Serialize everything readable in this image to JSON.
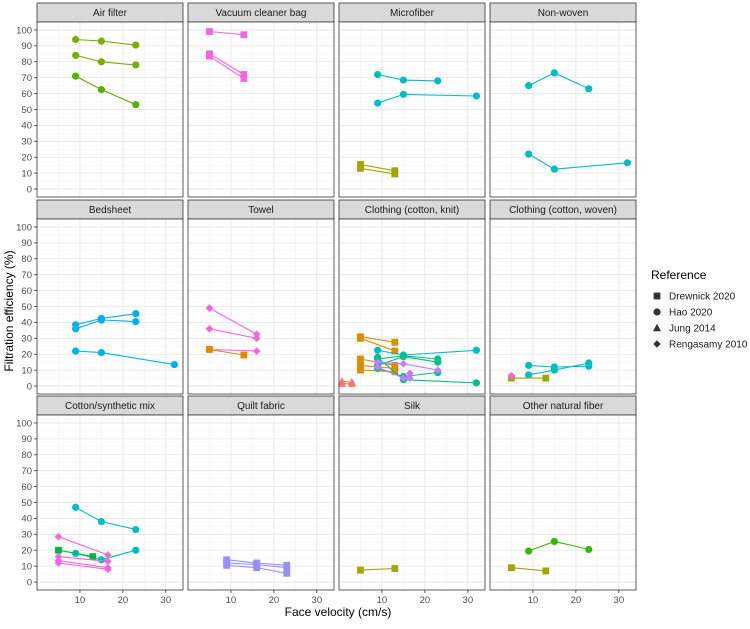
{
  "chart_data": {
    "type": "line",
    "ylabel": "Filtration efficiency (%)",
    "xlabel": "Face velocity (cm/s)",
    "x_ticks": [
      "10",
      "20",
      "30"
    ],
    "y_ticks": [
      "0",
      "10",
      "20",
      "30",
      "40",
      "50",
      "60",
      "70",
      "80",
      "90",
      "100"
    ],
    "xlim": [
      0,
      34
    ],
    "ylim": [
      -5,
      105
    ],
    "legend": {
      "title": "Reference",
      "position": "right",
      "items": [
        {
          "label": "Drewnick 2020",
          "shape": "square"
        },
        {
          "label": "Hao 2020",
          "shape": "circle"
        },
        {
          "label": "Jung 2014",
          "shape": "triangle"
        },
        {
          "label": "Rengasamy 2010",
          "shape": "diamond"
        }
      ]
    },
    "panels": [
      {
        "title": "Air filter",
        "series": [
          {
            "ref": "Hao 2020",
            "color": "#7CAE00",
            "points": [
              [
                9,
                94
              ],
              [
                15,
                93
              ],
              [
                23,
                90.5
              ]
            ]
          },
          {
            "ref": "Hao 2020",
            "color": "#7CAE00",
            "points": [
              [
                9,
                84
              ],
              [
                15,
                80
              ],
              [
                23,
                78
              ]
            ]
          },
          {
            "ref": "Hao 2020",
            "color": "#53B400",
            "points": [
              [
                9,
                71
              ],
              [
                15,
                62.5
              ],
              [
                23,
                53
              ]
            ]
          }
        ]
      },
      {
        "title": "Vacuum cleaner bag",
        "series": [
          {
            "ref": "Drewnick 2020",
            "color": "#F564E3",
            "points": [
              [
                5,
                99
              ],
              [
                13,
                97
              ]
            ]
          },
          {
            "ref": "Drewnick 2020",
            "color": "#F564E3",
            "points": [
              [
                5,
                85
              ],
              [
                13,
                72
              ]
            ]
          },
          {
            "ref": "Drewnick 2020",
            "color": "#F564E3",
            "points": [
              [
                5,
                83.5
              ],
              [
                13,
                69.5
              ]
            ]
          }
        ]
      },
      {
        "title": "Microfiber",
        "series": [
          {
            "ref": "Hao 2020",
            "color": "#00BFC4",
            "points": [
              [
                9,
                72
              ],
              [
                15,
                68.5
              ],
              [
                23,
                68
              ]
            ]
          },
          {
            "ref": "Hao 2020",
            "color": "#00BFC4",
            "points": [
              [
                9,
                54
              ],
              [
                15,
                59.5
              ],
              [
                32,
                58.5
              ]
            ]
          },
          {
            "ref": "Drewnick 2020",
            "color": "#A3A500",
            "points": [
              [
                5,
                15.5
              ],
              [
                13,
                11.5
              ]
            ]
          },
          {
            "ref": "Drewnick 2020",
            "color": "#A3A500",
            "points": [
              [
                5,
                13
              ],
              [
                13,
                9.5
              ]
            ]
          }
        ]
      },
      {
        "title": "Non-woven",
        "series": [
          {
            "ref": "Hao 2020",
            "color": "#00BFC4",
            "points": [
              [
                9,
                65
              ],
              [
                15,
                73
              ],
              [
                23,
                63
              ]
            ]
          },
          {
            "ref": "Hao 2020",
            "color": "#00BFC4",
            "points": [
              [
                9,
                22
              ],
              [
                15,
                12.5
              ],
              [
                32,
                16.5
              ]
            ]
          }
        ]
      },
      {
        "title": "Bedsheet",
        "series": [
          {
            "ref": "Hao 2020",
            "color": "#00B0F6",
            "points": [
              [
                9,
                38.5
              ],
              [
                15,
                42.5
              ],
              [
                23,
                45.5
              ]
            ]
          },
          {
            "ref": "Hao 2020",
            "color": "#00B0F6",
            "points": [
              [
                9,
                36
              ],
              [
                15,
                41.5
              ],
              [
                23,
                40.5
              ]
            ]
          },
          {
            "ref": "Hao 2020",
            "color": "#00B0F6",
            "points": [
              [
                9,
                22
              ],
              [
                15,
                21
              ],
              [
                32,
                13.5
              ]
            ]
          }
        ]
      },
      {
        "title": "Towel",
        "series": [
          {
            "ref": "Rengasamy 2010",
            "color": "#F564E3",
            "points": [
              [
                5,
                49
              ],
              [
                16,
                32.5
              ]
            ]
          },
          {
            "ref": "Rengasamy 2010",
            "color": "#F564E3",
            "points": [
              [
                5,
                36
              ],
              [
                16,
                30
              ]
            ]
          },
          {
            "ref": "Rengasamy 2010",
            "color": "#F564E3",
            "points": [
              [
                5,
                23
              ],
              [
                16,
                22
              ]
            ]
          },
          {
            "ref": "Drewnick 2020",
            "color": "#E58700",
            "points": [
              [
                5,
                23
              ],
              [
                13,
                19.5
              ]
            ]
          }
        ]
      },
      {
        "title": "Clothing (cotton, knit)",
        "series": [
          {
            "ref": "Drewnick 2020",
            "color": "#D89000",
            "points": [
              [
                5,
                31
              ],
              [
                13,
                27.5
              ]
            ]
          },
          {
            "ref": "Drewnick 2020",
            "color": "#D89000",
            "points": [
              [
                5,
                30
              ],
              [
                13,
                22
              ]
            ]
          },
          {
            "ref": "Drewnick 2020",
            "color": "#D89000",
            "points": [
              [
                5,
                17
              ],
              [
                13,
                13
              ]
            ]
          },
          {
            "ref": "Drewnick 2020",
            "color": "#D89000",
            "points": [
              [
                5,
                13
              ],
              [
                13,
                11
              ]
            ]
          },
          {
            "ref": "Drewnick 2020",
            "color": "#D89000",
            "points": [
              [
                5,
                10
              ],
              [
                13,
                9
              ]
            ]
          },
          {
            "ref": "Jung 2014",
            "color": "#F8766D",
            "points": [
              [
                0.7,
                3
              ],
              [
                3,
                2.5
              ]
            ]
          },
          {
            "ref": "Jung 2014",
            "color": "#F8766D",
            "points": [
              [
                0.7,
                1.5
              ],
              [
                3,
                1.5
              ]
            ]
          },
          {
            "ref": "Hao 2020",
            "color": "#00BFC4",
            "points": [
              [
                9,
                22.5
              ],
              [
                15,
                19.5
              ],
              [
                32,
                22.5
              ]
            ]
          },
          {
            "ref": "Hao 2020",
            "color": "#00C08B",
            "points": [
              [
                9,
                17
              ],
              [
                15,
                19
              ],
              [
                23,
                17
              ]
            ]
          },
          {
            "ref": "Hao 2020",
            "color": "#00C08B",
            "points": [
              [
                9,
                13
              ],
              [
                15,
                18.5
              ],
              [
                23,
                15
              ]
            ]
          },
          {
            "ref": "Hao 2020",
            "color": "#00C08B",
            "points": [
              [
                9,
                11
              ],
              [
                15,
                6
              ],
              [
                23,
                8.5
              ]
            ]
          },
          {
            "ref": "Hao 2020",
            "color": "#00C08B",
            "points": [
              [
                9,
                18
              ],
              [
                15,
                4
              ],
              [
                32,
                2
              ]
            ]
          },
          {
            "ref": "Rengasamy 2010",
            "color": "#C77CFF",
            "points": [
              [
                9,
                15
              ],
              [
                15,
                14
              ],
              [
                23,
                10
              ]
            ]
          },
          {
            "ref": "Rengasamy 2010",
            "color": "#C77CFF",
            "points": [
              [
                9,
                12
              ],
              [
                15,
                5
              ],
              [
                16.5,
                5
              ]
            ]
          },
          {
            "ref": "Rengasamy 2010",
            "color": "#F564E3",
            "points": [
              [
                16.5,
                8
              ]
            ]
          }
        ]
      },
      {
        "title": "Clothing (cotton, woven)",
        "series": [
          {
            "ref": "Hao 2020",
            "color": "#00BFC4",
            "points": [
              [
                9,
                13
              ],
              [
                15,
                12
              ],
              [
                23,
                12.5
              ]
            ]
          },
          {
            "ref": "Hao 2020",
            "color": "#00BFC4",
            "points": [
              [
                9,
                7
              ],
              [
                15,
                10
              ],
              [
                23,
                14.5
              ]
            ]
          },
          {
            "ref": "Drewnick 2020",
            "color": "#A3A500",
            "points": [
              [
                5,
                5
              ],
              [
                13,
                5
              ]
            ]
          },
          {
            "ref": "Rengasamy 2010",
            "color": "#F564E3",
            "points": [
              [
                5,
                6.5
              ]
            ]
          }
        ]
      },
      {
        "title": "Cotton/synthetic mix",
        "series": [
          {
            "ref": "Hao 2020",
            "color": "#00BFC4",
            "points": [
              [
                9,
                47
              ],
              [
                15,
                38
              ],
              [
                23,
                33
              ]
            ]
          },
          {
            "ref": "Hao 2020",
            "color": "#00BFC4",
            "points": [
              [
                9,
                18
              ],
              [
                15,
                14
              ],
              [
                23,
                20
              ]
            ]
          },
          {
            "ref": "Drewnick 2020",
            "color": "#00BA38",
            "points": [
              [
                5,
                20
              ],
              [
                13,
                16
              ]
            ]
          },
          {
            "ref": "Rengasamy 2010",
            "color": "#F564E3",
            "points": [
              [
                5,
                28.5
              ],
              [
                16.5,
                17
              ]
            ]
          },
          {
            "ref": "Rengasamy 2010",
            "color": "#F564E3",
            "points": [
              [
                5,
                16
              ],
              [
                16.5,
                13
              ]
            ]
          },
          {
            "ref": "Rengasamy 2010",
            "color": "#F564E3",
            "points": [
              [
                5,
                13.5
              ],
              [
                16.5,
                9
              ]
            ]
          },
          {
            "ref": "Rengasamy 2010",
            "color": "#F564E3",
            "points": [
              [
                5,
                12
              ],
              [
                16.5,
                8
              ]
            ]
          }
        ]
      },
      {
        "title": "Quilt fabric",
        "series": [
          {
            "ref": "Drewnick 2020",
            "color": "#9590FF",
            "points": [
              [
                9,
                14
              ],
              [
                16,
                12
              ],
              [
                23,
                10.5
              ]
            ]
          },
          {
            "ref": "Drewnick 2020",
            "color": "#9590FF",
            "points": [
              [
                9,
                12
              ],
              [
                16,
                11
              ],
              [
                23,
                9
              ]
            ]
          },
          {
            "ref": "Drewnick 2020",
            "color": "#9590FF",
            "points": [
              [
                9,
                10.5
              ],
              [
                16,
                9
              ],
              [
                23,
                5.5
              ]
            ]
          }
        ]
      },
      {
        "title": "Silk",
        "series": [
          {
            "ref": "Drewnick 2020",
            "color": "#A3A500",
            "points": [
              [
                5,
                7.5
              ],
              [
                13,
                8.5
              ]
            ]
          }
        ]
      },
      {
        "title": "Other natural fiber",
        "series": [
          {
            "ref": "Hao 2020",
            "color": "#39B600",
            "points": [
              [
                9,
                19.5
              ],
              [
                15,
                25.5
              ],
              [
                23,
                20.5
              ]
            ]
          },
          {
            "ref": "Drewnick 2020",
            "color": "#A3A500",
            "points": [
              [
                5,
                9
              ],
              [
                13,
                7
              ]
            ]
          }
        ]
      }
    ]
  }
}
